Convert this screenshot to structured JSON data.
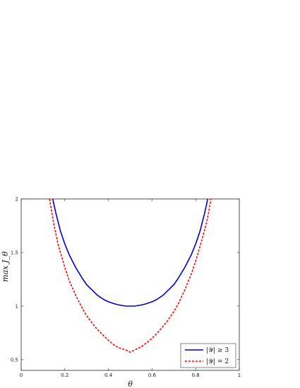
{
  "chart_data": {
    "type": "line",
    "title": "",
    "xlabel": "θ",
    "ylabel": "max J_θ",
    "xlim": [
      0,
      1
    ],
    "ylim": [
      0.4,
      2
    ],
    "xticks": [
      0,
      0.2,
      0.4,
      0.6,
      0.8,
      1
    ],
    "xtick_labels": [
      "0",
      "0.2",
      "0.4",
      "0.6",
      "0.8",
      "1"
    ],
    "yticks": [
      0.5,
      1,
      1.5,
      2
    ],
    "ytick_labels": [
      "0.5",
      "1",
      "1.5",
      "2"
    ],
    "grid": false,
    "legend_position": "bottom-right",
    "series": [
      {
        "name": "|𝒴| ≥ 3",
        "color": "#0000cc",
        "style": "solid",
        "x": [
          0.145,
          0.15,
          0.16,
          0.18,
          0.2,
          0.22,
          0.25,
          0.28,
          0.3,
          0.33,
          0.35,
          0.38,
          0.4,
          0.43,
          0.45,
          0.48,
          0.5,
          0.52,
          0.55,
          0.57,
          0.6,
          0.62,
          0.65,
          0.67,
          0.7,
          0.72,
          0.75,
          0.78,
          0.8,
          0.82,
          0.84,
          0.85,
          0.855
        ],
        "y": [
          2.0,
          1.95,
          1.86,
          1.7,
          1.58,
          1.48,
          1.36,
          1.26,
          1.2,
          1.14,
          1.1,
          1.06,
          1.04,
          1.02,
          1.01,
          1.0,
          1.0,
          1.0,
          1.01,
          1.02,
          1.04,
          1.06,
          1.1,
          1.14,
          1.2,
          1.26,
          1.36,
          1.48,
          1.58,
          1.7,
          1.86,
          1.95,
          2.0
        ]
      },
      {
        "name": "|𝒴| = 2",
        "color": "#ff0000",
        "style": "dashed",
        "x": [
          0.13,
          0.14,
          0.15,
          0.17,
          0.2,
          0.22,
          0.25,
          0.28,
          0.3,
          0.33,
          0.35,
          0.38,
          0.4,
          0.43,
          0.45,
          0.48,
          0.5,
          0.52,
          0.55,
          0.57,
          0.6,
          0.62,
          0.65,
          0.67,
          0.7,
          0.72,
          0.75,
          0.78,
          0.8,
          0.83,
          0.85,
          0.86,
          0.87
        ],
        "y": [
          2.0,
          1.88,
          1.76,
          1.57,
          1.36,
          1.24,
          1.1,
          0.98,
          0.91,
          0.83,
          0.78,
          0.72,
          0.68,
          0.63,
          0.61,
          0.59,
          0.57,
          0.59,
          0.62,
          0.65,
          0.7,
          0.74,
          0.81,
          0.86,
          0.95,
          1.02,
          1.15,
          1.3,
          1.42,
          1.63,
          1.78,
          1.88,
          2.0
        ]
      }
    ]
  }
}
